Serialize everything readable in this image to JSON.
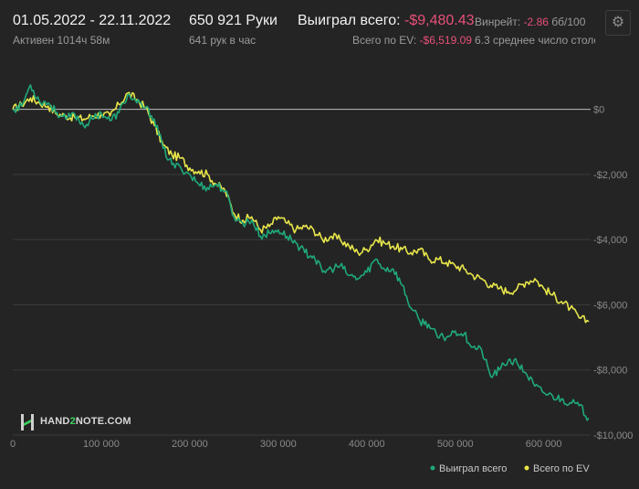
{
  "header": {
    "date_range": "01.05.2022 - 22.11.2022",
    "active_time": "Активен 1014ч 58м",
    "hands": "650 921 Руки",
    "hands_per_hour": "641 рук в час",
    "won_label": "Выиграл всего:",
    "won_value": "-$9,480.43",
    "ev_label": "Всего по EV:",
    "ev_value": "-$6,519.09",
    "winrate_label": "Винрейт:",
    "winrate_value": "-2.86",
    "winrate_unit": "бб/100",
    "avg_tables": "6.3 среднее число столо"
  },
  "settings_icon": "gear-icon",
  "logo": {
    "text_left": "HAND",
    "text_mid": "2",
    "text_right": "NOTE.COM"
  },
  "chart_data": {
    "type": "line",
    "xlabel": "",
    "ylabel": "",
    "x_ticks": [
      "0",
      "100 000",
      "200 000",
      "300 000",
      "400 000",
      "500 000",
      "600 000"
    ],
    "x_tick_values": [
      0,
      100000,
      200000,
      300000,
      400000,
      500000,
      600000
    ],
    "y_ticks": [
      "$0",
      "-$2,000",
      "-$4,000",
      "-$6,000",
      "-$8,000",
      "-$10,000"
    ],
    "y_tick_values": [
      0,
      -2000,
      -4000,
      -6000,
      -8000,
      -10000
    ],
    "xlim": [
      0,
      650921
    ],
    "ylim": [
      -10000,
      1000
    ],
    "grid": true,
    "legend_position": "bottom-right",
    "colors": {
      "won": "#1fa97a",
      "ev": "#e8e64a",
      "zero_line": "#bdbdbd",
      "grid": "#3a3a3a"
    },
    "series": [
      {
        "name": "Выиграл всего",
        "x": [
          0,
          10000,
          20000,
          30000,
          40000,
          50000,
          60000,
          70000,
          80000,
          90000,
          100000,
          110000,
          120000,
          130000,
          140000,
          150000,
          160000,
          170000,
          180000,
          190000,
          200000,
          210000,
          220000,
          230000,
          240000,
          250000,
          260000,
          270000,
          280000,
          290000,
          300000,
          310000,
          320000,
          330000,
          340000,
          350000,
          360000,
          370000,
          380000,
          390000,
          400000,
          410000,
          420000,
          430000,
          440000,
          450000,
          460000,
          470000,
          480000,
          490000,
          500000,
          510000,
          520000,
          530000,
          540000,
          550000,
          560000,
          570000,
          580000,
          590000,
          600000,
          610000,
          620000,
          630000,
          640000,
          650921
        ],
        "y": [
          0,
          100,
          750,
          250,
          200,
          -100,
          -300,
          -150,
          -500,
          -300,
          -100,
          -350,
          -100,
          450,
          200,
          50,
          -300,
          -1200,
          -1700,
          -1800,
          -2000,
          -2300,
          -2400,
          -2300,
          -2500,
          -3300,
          -3500,
          -3400,
          -3900,
          -3800,
          -3700,
          -3900,
          -4100,
          -4400,
          -4500,
          -5000,
          -4900,
          -4800,
          -5100,
          -5200,
          -5000,
          -4600,
          -4900,
          -4900,
          -5400,
          -6100,
          -6500,
          -6600,
          -7000,
          -7000,
          -6800,
          -6900,
          -7300,
          -7400,
          -8200,
          -8000,
          -7700,
          -7800,
          -8100,
          -8500,
          -8700,
          -8800,
          -8900,
          -9000,
          -9100,
          -9480
        ]
      },
      {
        "name": "Всего по EV",
        "x": [
          0,
          10000,
          20000,
          30000,
          40000,
          50000,
          60000,
          70000,
          80000,
          90000,
          100000,
          110000,
          120000,
          130000,
          140000,
          150000,
          160000,
          170000,
          180000,
          190000,
          200000,
          210000,
          220000,
          230000,
          240000,
          250000,
          260000,
          270000,
          280000,
          290000,
          300000,
          310000,
          320000,
          330000,
          340000,
          350000,
          360000,
          370000,
          380000,
          390000,
          400000,
          410000,
          420000,
          430000,
          440000,
          450000,
          460000,
          470000,
          480000,
          490000,
          500000,
          510000,
          520000,
          530000,
          540000,
          550000,
          560000,
          570000,
          580000,
          590000,
          600000,
          610000,
          620000,
          630000,
          640000,
          650921
        ],
        "y": [
          0,
          150,
          350,
          200,
          100,
          -150,
          -200,
          -250,
          -300,
          -200,
          -150,
          -200,
          150,
          500,
          300,
          50,
          -500,
          -1100,
          -1400,
          -1500,
          -1800,
          -1900,
          -2000,
          -2300,
          -2500,
          -3200,
          -3400,
          -3300,
          -3700,
          -3600,
          -3300,
          -3500,
          -3700,
          -3600,
          -3700,
          -4000,
          -3900,
          -4000,
          -4200,
          -4400,
          -4300,
          -4000,
          -4100,
          -4200,
          -4300,
          -4400,
          -4300,
          -4600,
          -4600,
          -4700,
          -4800,
          -4900,
          -5100,
          -5200,
          -5400,
          -5500,
          -5600,
          -5500,
          -5300,
          -5200,
          -5500,
          -5700,
          -5900,
          -6100,
          -6400,
          -6519
        ]
      }
    ]
  }
}
